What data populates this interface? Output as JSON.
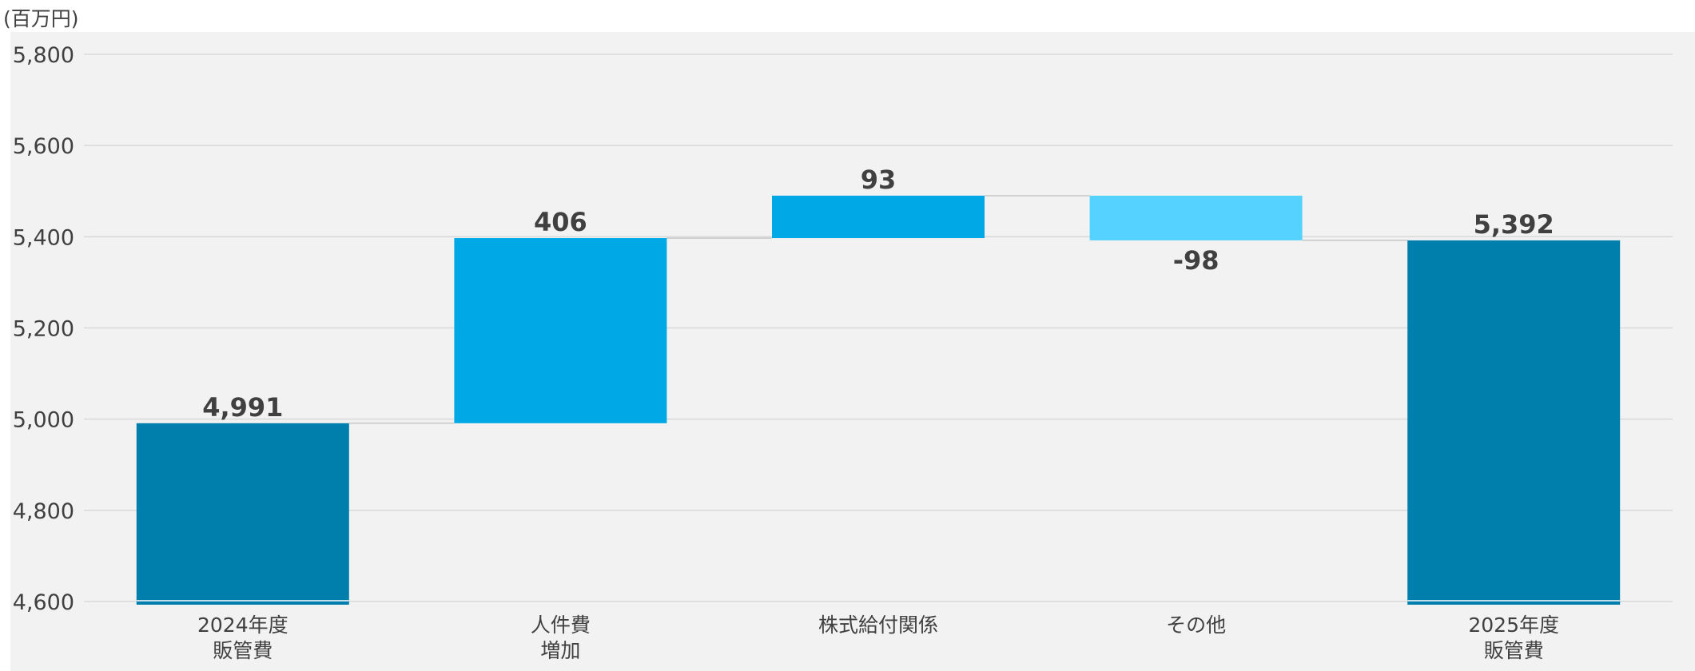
{
  "chart_data": {
    "type": "bar",
    "subtype": "waterfall",
    "unit_label": "(百万円)",
    "categories": [
      [
        "2024年度",
        "販管費"
      ],
      [
        "人件費",
        "増加"
      ],
      [
        "株式給付関係"
      ],
      [
        "その他"
      ],
      [
        "2025年度",
        "販管費"
      ]
    ],
    "kinds": [
      "total",
      "increase",
      "increase",
      "decrease",
      "total"
    ],
    "values": [
      4991,
      406,
      93,
      -98,
      5392
    ],
    "data_labels": [
      "4,991",
      "406",
      "93",
      "-98",
      "5,392"
    ],
    "ylim": [
      4600,
      5800
    ],
    "yticks": [
      4600,
      4800,
      5000,
      5200,
      5400,
      5600,
      5800
    ],
    "ytick_labels": [
      "4,600",
      "4,800",
      "5,000",
      "5,200",
      "5,400",
      "5,600",
      "5,800"
    ],
    "grid": true,
    "colors": {
      "total": "#007fad",
      "increase": "#00a9e6",
      "decrease": "#55d2ff",
      "gridline": "#d9d9d9",
      "connector": "#d0d0d0",
      "background": "#f2f2f2",
      "text": "#404040"
    }
  }
}
